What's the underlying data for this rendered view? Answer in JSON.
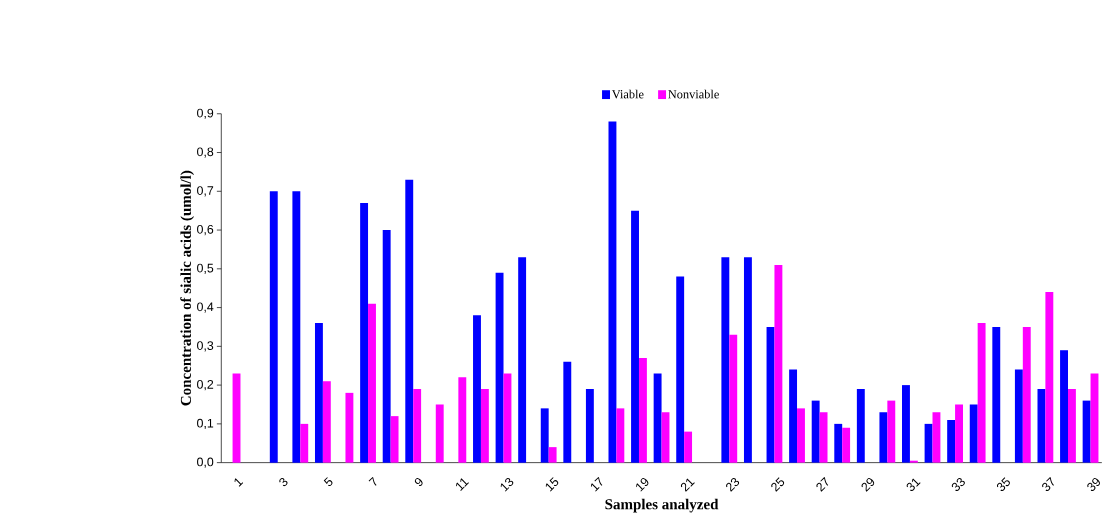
{
  "chart_data": {
    "type": "bar",
    "xlabel": "Samples analyzed",
    "ylabel": "Concentration of sialic acids (umol/l)",
    "categories": [
      "1",
      null,
      "3",
      null,
      "5",
      null,
      "7",
      null,
      "9",
      null,
      "11",
      null,
      "13",
      null,
      "15",
      null,
      "17",
      null,
      "19",
      null,
      "21",
      null,
      "23",
      null,
      "25",
      null,
      "27",
      null,
      "29",
      null,
      "31",
      null,
      "33",
      null,
      "35",
      null,
      "37",
      null,
      "39"
    ],
    "series": [
      {
        "name": "Viable",
        "color": "#0000ff",
        "values": [
          null,
          null,
          0.7,
          0.7,
          0.36,
          null,
          0.67,
          0.6,
          0.73,
          null,
          null,
          0.38,
          0.49,
          0.53,
          0.14,
          0.26,
          0.19,
          0.88,
          0.65,
          0.23,
          0.48,
          null,
          0.53,
          0.53,
          0.35,
          0.24,
          0.16,
          0.1,
          0.19,
          0.13,
          0.2,
          0.1,
          0.11,
          0.15,
          0.35,
          0.24,
          0.19,
          0.29,
          0.16
        ]
      },
      {
        "name": "Nonviable",
        "color": "#ff00ff",
        "values": [
          0.23,
          null,
          null,
          0.1,
          0.21,
          0.18,
          0.41,
          0.12,
          0.19,
          0.15,
          0.22,
          0.19,
          0.23,
          null,
          0.04,
          null,
          null,
          0.14,
          0.27,
          0.13,
          0.08,
          null,
          0.33,
          null,
          0.51,
          0.14,
          0.13,
          0.09,
          null,
          0.16,
          0.005,
          0.13,
          0.15,
          0.36,
          null,
          0.35,
          0.44,
          0.19,
          0.23
        ]
      }
    ],
    "ylim": [
      0,
      0.9
    ],
    "yticks": [
      {
        "value": 0,
        "label": "0,0"
      },
      {
        "value": 0.1,
        "label": "0,1"
      },
      {
        "value": 0.2,
        "label": "0,2"
      },
      {
        "value": 0.3,
        "label": "0,3"
      },
      {
        "value": 0.4,
        "label": "0,4"
      },
      {
        "value": 0.5,
        "label": "0,5"
      },
      {
        "value": 0.6,
        "label": "0,6"
      },
      {
        "value": 0.7,
        "label": "0,7"
      },
      {
        "value": 0.8,
        "label": "0,8"
      },
      {
        "value": 0.9,
        "label": "0,9"
      }
    ],
    "grid": false,
    "legend": "top"
  }
}
